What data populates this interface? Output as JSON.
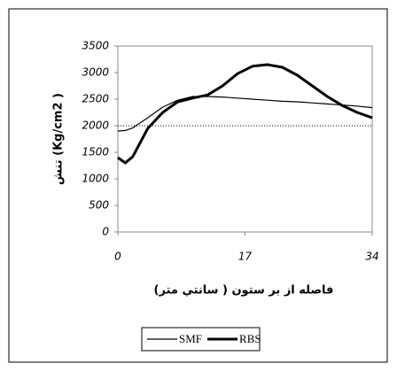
{
  "chart_data": {
    "type": "line",
    "x_label": "فاصله از بر ستون ( سانتي متر)",
    "y_label": "تنش (Kg/cm2 )",
    "x": [
      0,
      1,
      2,
      4,
      6,
      8,
      10,
      12,
      14,
      16,
      18,
      20,
      22,
      24,
      26,
      28,
      30,
      32,
      34
    ],
    "series": [
      {
        "name": "SMF",
        "color": "#000000",
        "width": 1.2,
        "values": [
          1900,
          1910,
          1960,
          2150,
          2350,
          2480,
          2550,
          2550,
          2540,
          2520,
          2500,
          2480,
          2460,
          2450,
          2430,
          2410,
          2390,
          2370,
          2340
        ]
      },
      {
        "name": "RBS",
        "color": "#000000",
        "width": 3,
        "values": [
          1400,
          1300,
          1420,
          1950,
          2250,
          2450,
          2520,
          2580,
          2750,
          2980,
          3120,
          3150,
          3100,
          2950,
          2750,
          2550,
          2380,
          2250,
          2150
        ]
      }
    ],
    "reference_line": 2000,
    "xlim": [
      0,
      34
    ],
    "xticks": [
      0,
      17,
      34
    ],
    "ylim": [
      0,
      3500
    ],
    "yticks": [
      0,
      500,
      1000,
      1500,
      2000,
      2500,
      3000,
      3500
    ],
    "grid": false,
    "legend": "bottom"
  }
}
